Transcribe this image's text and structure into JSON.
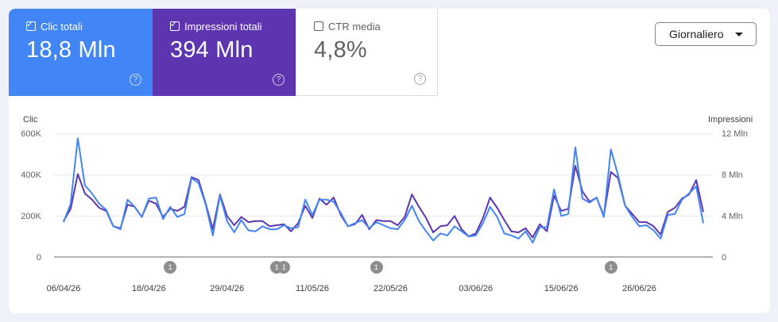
{
  "metrics": {
    "clicks": {
      "label": "Clic totali",
      "value": "18,8 Mln",
      "checked": true,
      "color": "#4285f4"
    },
    "impressions": {
      "label": "Impressioni totali",
      "value": "394 Mln",
      "checked": true,
      "color": "#5e35b1"
    },
    "ctr": {
      "label": "CTR media",
      "value": "4,8%",
      "checked": false
    }
  },
  "dropdown": {
    "label": "Giornaliero"
  },
  "icons": {
    "help": "help-circle-icon",
    "checkbox": "checkbox-icon",
    "dropdown": "chevron-down-icon"
  },
  "chart_data": {
    "type": "line",
    "y_left": {
      "title": "Clic",
      "ticks": [
        "0",
        "200K",
        "400K",
        "600K"
      ],
      "range": [
        0,
        600000
      ]
    },
    "y_right": {
      "title": "Impressioni",
      "ticks": [
        "0",
        "4 Mln",
        "8 Mln",
        "12 Mln"
      ],
      "range": [
        0,
        12000000
      ]
    },
    "x_ticks": [
      {
        "label": "06/04/26",
        "index": 0
      },
      {
        "label": "18/04/26",
        "index": 12
      },
      {
        "label": "29/04/26",
        "index": 23
      },
      {
        "label": "11/05/26",
        "index": 35
      },
      {
        "label": "22/05/26",
        "index": 46
      },
      {
        "label": "03/06/26",
        "index": 58
      },
      {
        "label": "15/06/26",
        "index": 70
      },
      {
        "label": "26/06/26",
        "index": 81
      }
    ],
    "annotations": [
      {
        "label": "1",
        "index": 15
      },
      {
        "label": "1",
        "index": 30
      },
      {
        "label": "1",
        "index": 31
      },
      {
        "label": "1",
        "index": 44
      },
      {
        "label": "1",
        "index": 77
      }
    ],
    "grid": true,
    "series": [
      {
        "name": "Clic",
        "axis": "left",
        "color": "#4285f4",
        "values": [
          170000,
          260000,
          580000,
          350000,
          310000,
          260000,
          230000,
          150000,
          135000,
          280000,
          245000,
          195000,
          285000,
          290000,
          185000,
          245000,
          195000,
          210000,
          385000,
          360000,
          255000,
          105000,
          300000,
          175000,
          120000,
          180000,
          130000,
          125000,
          150000,
          135000,
          135000,
          155000,
          140000,
          145000,
          280000,
          205000,
          280000,
          280000,
          270000,
          215000,
          150000,
          165000,
          180000,
          140000,
          170000,
          155000,
          140000,
          135000,
          180000,
          250000,
          175000,
          125000,
          80000,
          115000,
          105000,
          150000,
          125000,
          100000,
          105000,
          165000,
          245000,
          195000,
          115000,
          105000,
          90000,
          125000,
          70000,
          145000,
          145000,
          330000,
          200000,
          210000,
          535000,
          285000,
          265000,
          290000,
          195000,
          525000,
          400000,
          250000,
          195000,
          150000,
          155000,
          130000,
          90000,
          205000,
          210000,
          280000,
          310000,
          345000,
          165000
        ]
      },
      {
        "name": "Impressioni",
        "axis": "right",
        "color": "#5e35b1",
        "values": [
          3500000,
          4700000,
          8100000,
          6200000,
          5600000,
          4800000,
          4500000,
          3000000,
          2800000,
          5100000,
          4900000,
          3900000,
          5500000,
          5200000,
          3900000,
          4700000,
          4500000,
          4900000,
          7800000,
          7500000,
          5200000,
          2700000,
          6100000,
          4000000,
          3100000,
          3900000,
          3400000,
          3500000,
          3500000,
          3000000,
          3100000,
          3200000,
          2500000,
          3300000,
          5000000,
          3800000,
          5700000,
          5100000,
          5800000,
          4100000,
          3000000,
          3200000,
          4100000,
          2700000,
          3600000,
          3500000,
          3500000,
          3100000,
          3900000,
          6100000,
          4900000,
          3800000,
          2400000,
          3000000,
          3100000,
          4000000,
          2700000,
          2000000,
          2300000,
          3800000,
          5800000,
          4800000,
          3600000,
          2500000,
          2400000,
          2800000,
          1900000,
          3200000,
          2500000,
          6000000,
          4500000,
          4700000,
          8900000,
          6400000,
          5400000,
          5800000,
          4000000,
          8300000,
          7700000,
          5000000,
          4200000,
          3400000,
          3400000,
          3000000,
          2200000,
          4400000,
          4800000,
          5700000,
          6100000,
          7500000,
          4400000
        ]
      }
    ]
  }
}
